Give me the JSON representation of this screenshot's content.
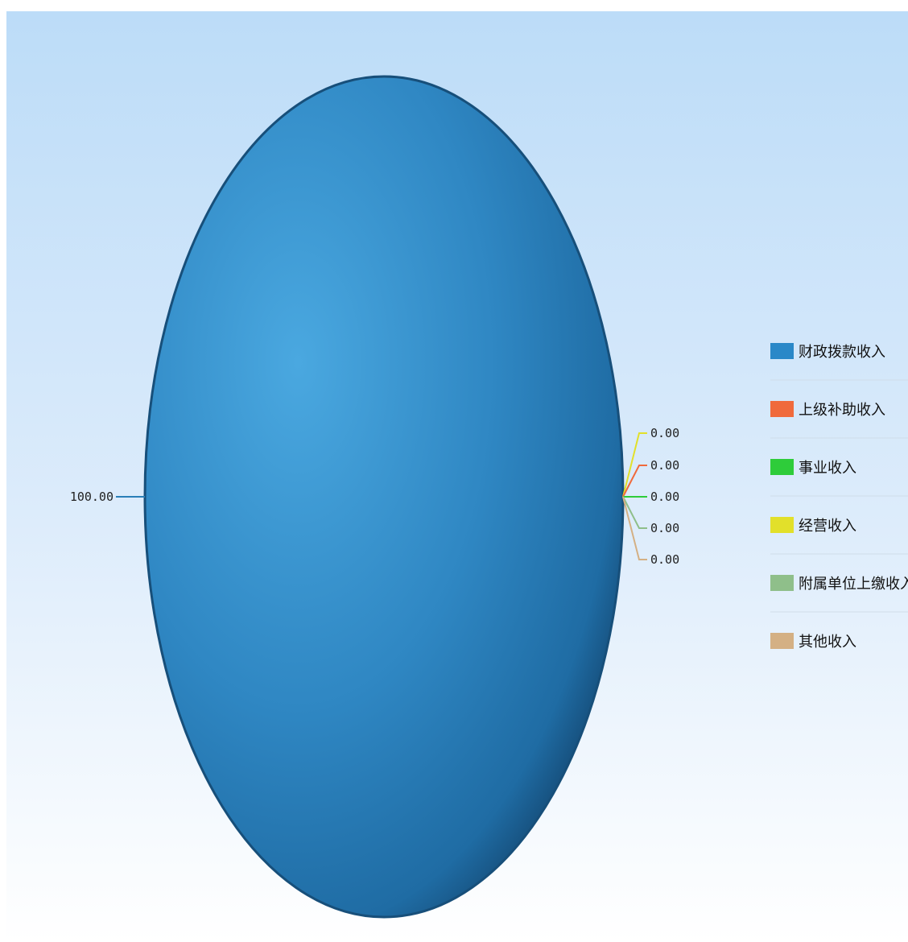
{
  "chart_data": {
    "type": "pie",
    "categories": [
      "财政拨款收入",
      "上级补助收入",
      "事业收入",
      "经营收入",
      "附属单位上缴收入",
      "其他收入"
    ],
    "values": [
      100.0,
      0.0,
      0.0,
      0.0,
      0.0,
      0.0
    ],
    "value_labels": [
      "100.00",
      "0.00",
      "0.00",
      "0.00",
      "0.00",
      "0.00"
    ],
    "colors": [
      "#2a88c8",
      "#f06a3c",
      "#2ecc3a",
      "#e2e02a",
      "#8fbf8a",
      "#d4b084"
    ],
    "legend_position": "right",
    "style": "3d"
  }
}
